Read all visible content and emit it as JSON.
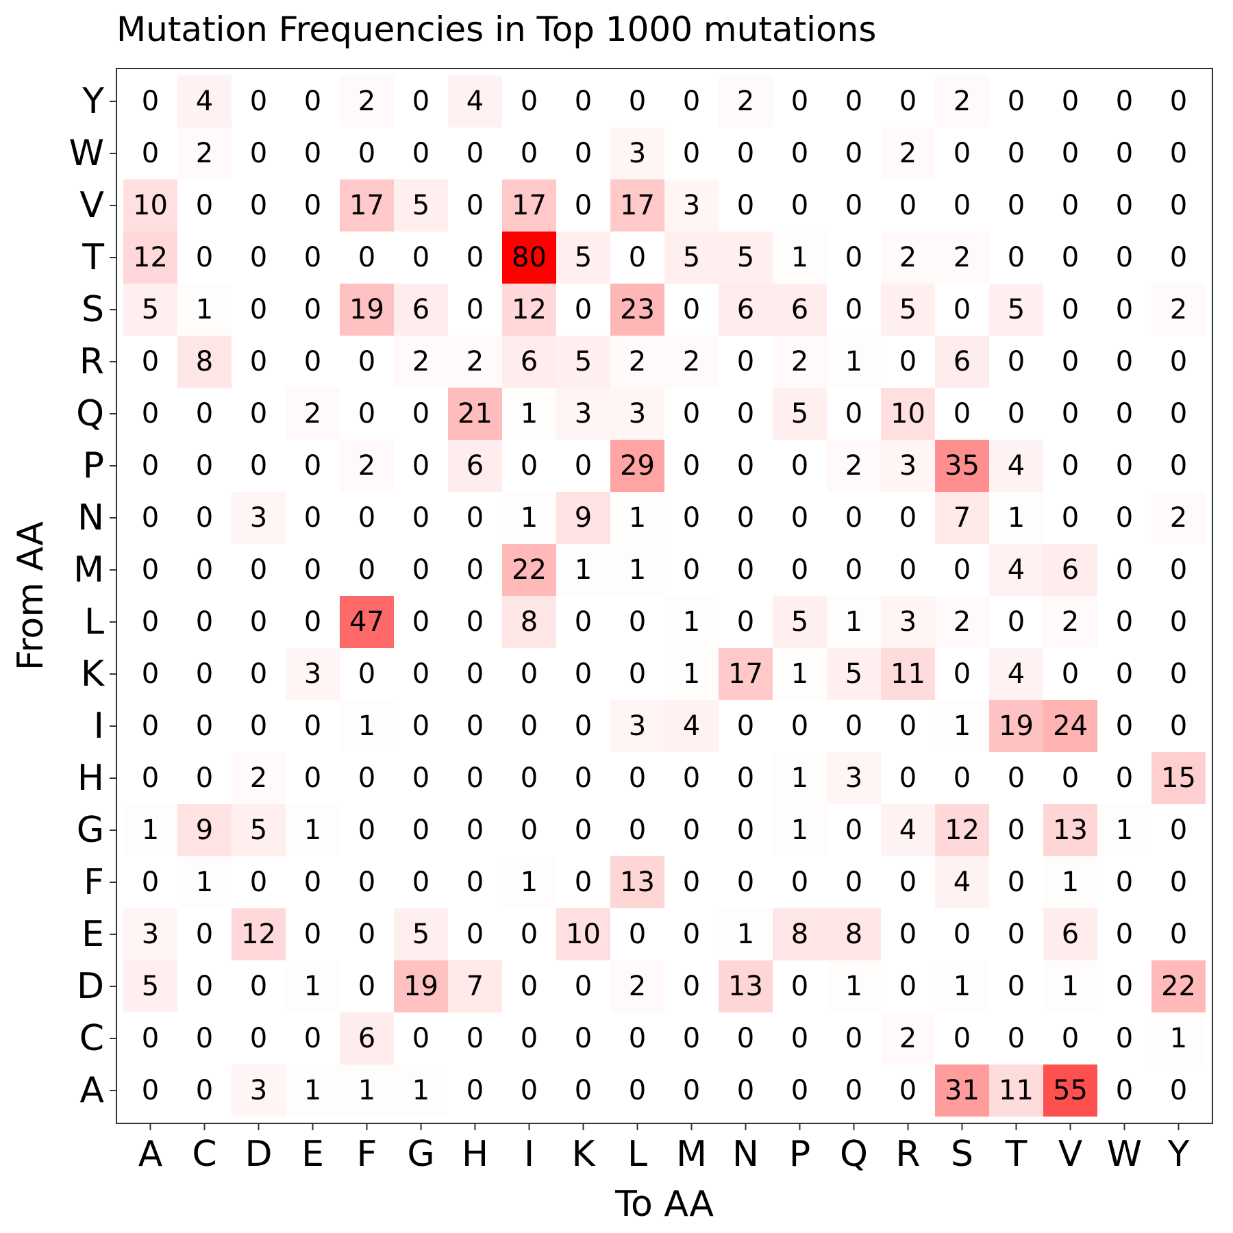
{
  "chart_data": {
    "type": "heatmap",
    "title": "Mutation Frequencies in Top 1000 mutations",
    "xlabel": "To AA",
    "ylabel": "From AA",
    "x_categories": [
      "A",
      "C",
      "D",
      "E",
      "F",
      "G",
      "H",
      "I",
      "K",
      "L",
      "M",
      "N",
      "P",
      "Q",
      "R",
      "S",
      "T",
      "V",
      "W",
      "Y"
    ],
    "y_categories_top_to_bottom": [
      "Y",
      "W",
      "V",
      "T",
      "S",
      "R",
      "Q",
      "P",
      "N",
      "M",
      "L",
      "K",
      "I",
      "H",
      "G",
      "F",
      "E",
      "D",
      "C",
      "A"
    ],
    "values": [
      [
        0,
        4,
        0,
        0,
        2,
        0,
        4,
        0,
        0,
        0,
        0,
        2,
        0,
        0,
        0,
        2,
        0,
        0,
        0,
        0
      ],
      [
        0,
        2,
        0,
        0,
        0,
        0,
        0,
        0,
        0,
        3,
        0,
        0,
        0,
        0,
        2,
        0,
        0,
        0,
        0,
        0
      ],
      [
        10,
        0,
        0,
        0,
        17,
        5,
        0,
        17,
        0,
        17,
        3,
        0,
        0,
        0,
        0,
        0,
        0,
        0,
        0,
        0
      ],
      [
        12,
        0,
        0,
        0,
        0,
        0,
        0,
        80,
        5,
        0,
        5,
        5,
        1,
        0,
        2,
        2,
        0,
        0,
        0,
        0
      ],
      [
        5,
        1,
        0,
        0,
        19,
        6,
        0,
        12,
        0,
        23,
        0,
        6,
        6,
        0,
        5,
        0,
        5,
        0,
        0,
        2
      ],
      [
        0,
        8,
        0,
        0,
        0,
        2,
        2,
        6,
        5,
        2,
        2,
        0,
        2,
        1,
        0,
        6,
        0,
        0,
        0,
        0
      ],
      [
        0,
        0,
        0,
        2,
        0,
        0,
        21,
        1,
        3,
        3,
        0,
        0,
        5,
        0,
        10,
        0,
        0,
        0,
        0,
        0
      ],
      [
        0,
        0,
        0,
        0,
        2,
        0,
        6,
        0,
        0,
        29,
        0,
        0,
        0,
        2,
        3,
        35,
        4,
        0,
        0,
        0
      ],
      [
        0,
        0,
        3,
        0,
        0,
        0,
        0,
        1,
        9,
        1,
        0,
        0,
        0,
        0,
        0,
        7,
        1,
        0,
        0,
        2
      ],
      [
        0,
        0,
        0,
        0,
        0,
        0,
        0,
        22,
        1,
        1,
        0,
        0,
        0,
        0,
        0,
        0,
        4,
        6,
        0,
        0
      ],
      [
        0,
        0,
        0,
        0,
        47,
        0,
        0,
        8,
        0,
        0,
        1,
        0,
        5,
        1,
        3,
        2,
        0,
        2,
        0,
        0
      ],
      [
        0,
        0,
        0,
        3,
        0,
        0,
        0,
        0,
        0,
        0,
        1,
        17,
        1,
        5,
        11,
        0,
        4,
        0,
        0,
        0
      ],
      [
        0,
        0,
        0,
        0,
        1,
        0,
        0,
        0,
        0,
        3,
        4,
        0,
        0,
        0,
        0,
        1,
        19,
        24,
        0,
        0
      ],
      [
        0,
        0,
        2,
        0,
        0,
        0,
        0,
        0,
        0,
        0,
        0,
        0,
        1,
        3,
        0,
        0,
        0,
        0,
        0,
        15
      ],
      [
        1,
        9,
        5,
        1,
        0,
        0,
        0,
        0,
        0,
        0,
        0,
        0,
        1,
        0,
        4,
        12,
        0,
        13,
        1,
        0
      ],
      [
        0,
        1,
        0,
        0,
        0,
        0,
        0,
        1,
        0,
        13,
        0,
        0,
        0,
        0,
        0,
        4,
        0,
        1,
        0,
        0
      ],
      [
        3,
        0,
        12,
        0,
        0,
        5,
        0,
        0,
        10,
        0,
        0,
        1,
        8,
        8,
        0,
        0,
        0,
        6,
        0,
        0
      ],
      [
        5,
        0,
        0,
        1,
        0,
        19,
        7,
        0,
        0,
        2,
        0,
        13,
        0,
        1,
        0,
        1,
        0,
        1,
        0,
        22
      ],
      [
        0,
        0,
        0,
        0,
        6,
        0,
        0,
        0,
        0,
        0,
        0,
        0,
        0,
        0,
        2,
        0,
        0,
        0,
        0,
        1
      ],
      [
        0,
        0,
        3,
        1,
        1,
        1,
        0,
        0,
        0,
        0,
        0,
        0,
        0,
        0,
        0,
        31,
        11,
        55,
        0,
        0
      ]
    ],
    "color_scale": {
      "low": "#ffffff",
      "high": "#ff0000",
      "domain": [
        0,
        80
      ]
    },
    "grid": false,
    "legend": "none"
  }
}
